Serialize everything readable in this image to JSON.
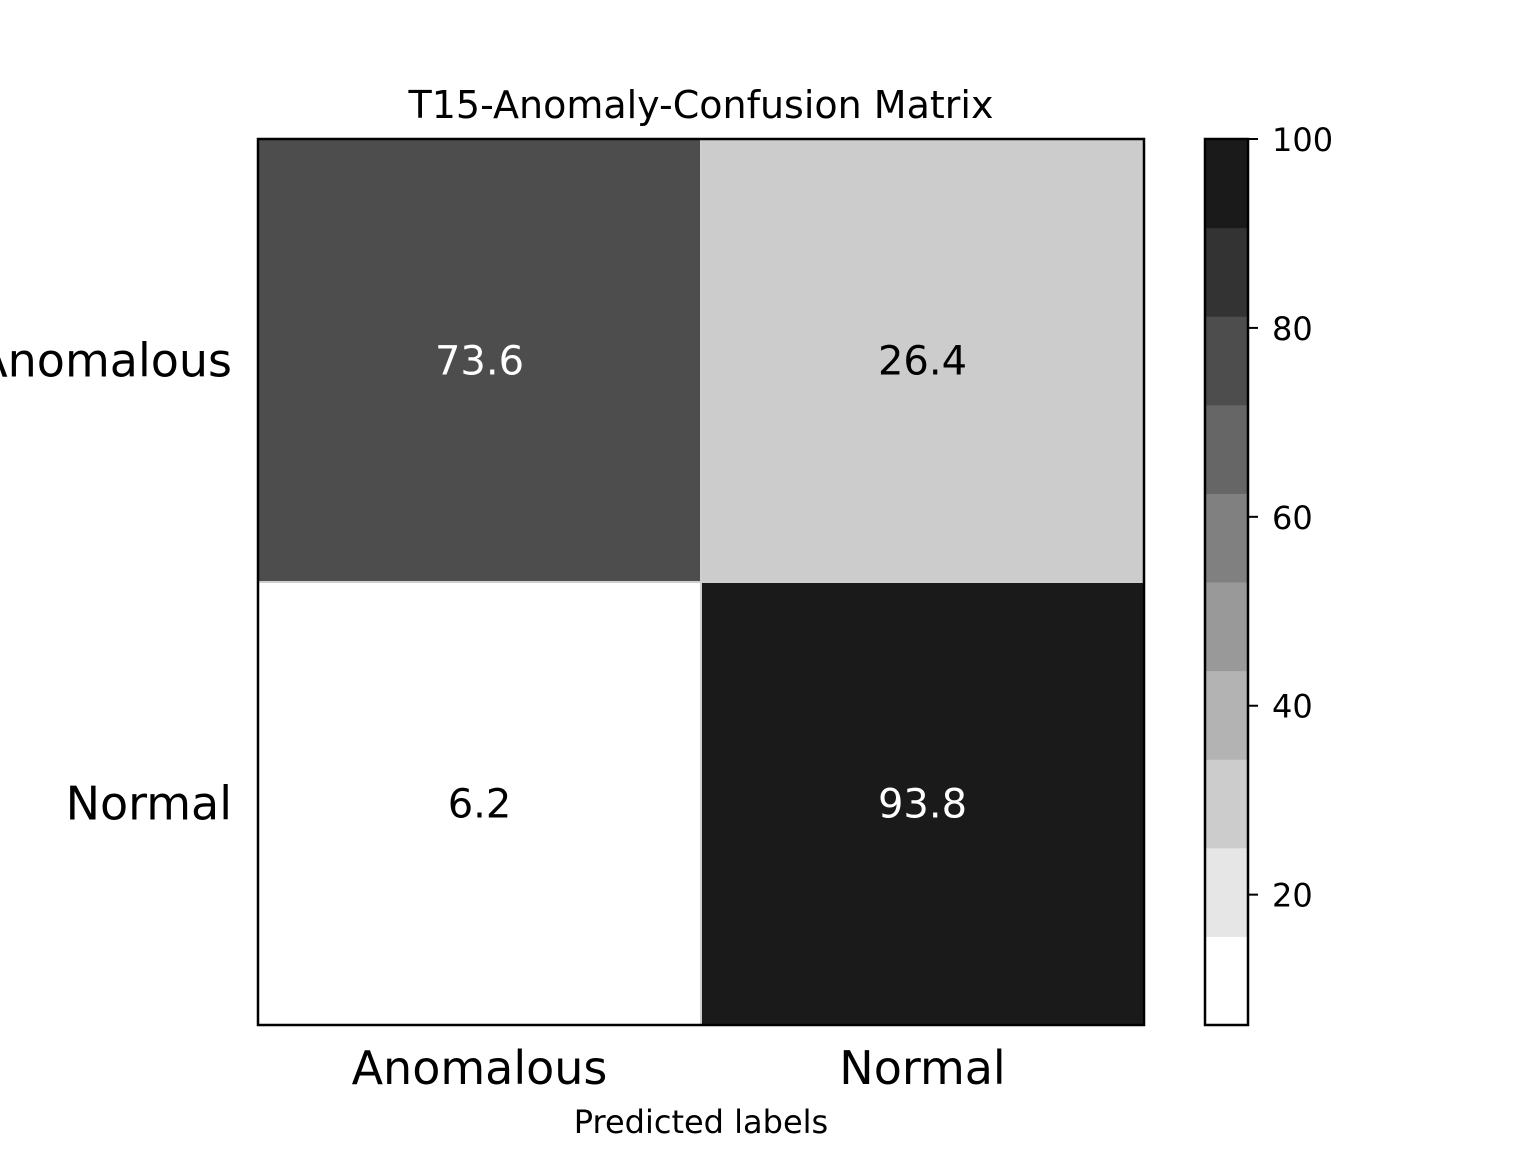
{
  "chart_data": {
    "type": "heatmap",
    "title": "T15-Anomaly-Confusion Matrix",
    "xlabel": "Predicted labels",
    "ylabel": "",
    "x_categories": [
      "Anomalous",
      "Normal"
    ],
    "y_categories": [
      "Anomalous",
      "Normal"
    ],
    "values": [
      [
        73.6,
        26.4
      ],
      [
        6.2,
        93.8
      ]
    ],
    "value_labels": [
      [
        "73.6",
        "26.4"
      ],
      [
        "6.2",
        "93.8"
      ]
    ],
    "colormap": "Greys",
    "color_range": [
      6.2,
      93.8
    ],
    "colorbar": {
      "range": [
        6.2,
        100
      ],
      "ticks": [
        20,
        40,
        60,
        80,
        100
      ],
      "tick_labels": [
        "20",
        "40",
        "60",
        "80",
        "100"
      ],
      "bands": 10,
      "band_colors": [
        "#ffffff",
        "#e6e6e6",
        "#cccccc",
        "#b3b3b3",
        "#999999",
        "#808080",
        "#666666",
        "#4d4d4d",
        "#333333",
        "#1a1a1a"
      ]
    },
    "grid": false,
    "legend": "none"
  }
}
